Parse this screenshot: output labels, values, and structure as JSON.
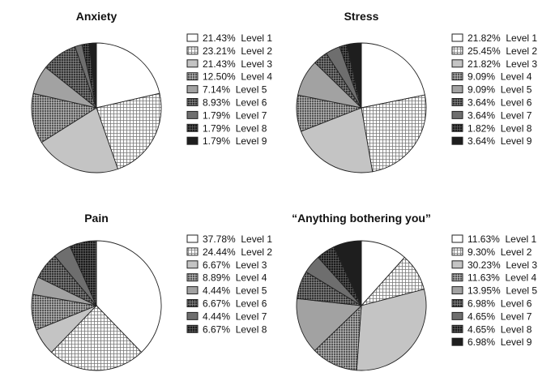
{
  "chart_data": [
    {
      "type": "pie",
      "title": "Anxiety",
      "categories": [
        "Level 1",
        "Level 2",
        "Level 3",
        "Level 4",
        "Level 5",
        "Level 6",
        "Level 7",
        "Level 8",
        "Level 9"
      ],
      "values": [
        21.43,
        23.21,
        21.43,
        12.5,
        7.14,
        8.93,
        1.79,
        1.79,
        1.79
      ],
      "labels": [
        "21.43%",
        "23.21%",
        "21.43%",
        "12.50%",
        "7.14%",
        "8.93%",
        "1.79%",
        "1.79%",
        "1.79%"
      ],
      "legend": "right"
    },
    {
      "type": "pie",
      "title": "Stress",
      "categories": [
        "Level 1",
        "Level 2",
        "Level 3",
        "Level 4",
        "Level 5",
        "Level 6",
        "Level 7",
        "Level 8",
        "Level 9"
      ],
      "values": [
        21.82,
        25.45,
        21.82,
        9.09,
        9.09,
        3.64,
        3.64,
        1.82,
        3.64
      ],
      "labels": [
        "21.82%",
        "25.45%",
        "21.82%",
        "9.09%",
        "9.09%",
        "3.64%",
        "3.64%",
        "1.82%",
        "3.64%"
      ],
      "legend": "right"
    },
    {
      "type": "pie",
      "title": "Pain",
      "categories": [
        "Level 1",
        "Level 2",
        "Level 3",
        "Level 4",
        "Level 5",
        "Level 6",
        "Level 7",
        "Level 8"
      ],
      "values": [
        37.78,
        24.44,
        6.67,
        8.89,
        4.44,
        6.67,
        4.44,
        6.67
      ],
      "labels": [
        "37.78%",
        "24.44%",
        "6.67%",
        "8.89%",
        "4.44%",
        "6.67%",
        "4.44%",
        "6.67%"
      ],
      "legend": "right"
    },
    {
      "type": "pie",
      "title": "“Anything bothering you”",
      "categories": [
        "Level 1",
        "Level 2",
        "Level 3",
        "Level 4",
        "Level 5",
        "Level 6",
        "Level 7",
        "Level 8",
        "Level 9"
      ],
      "values": [
        11.63,
        9.3,
        30.23,
        11.63,
        13.95,
        6.98,
        4.65,
        4.65,
        6.98
      ],
      "labels": [
        "11.63%",
        "9.30%",
        "30.23%",
        "11.63%",
        "13.95%",
        "6.98%",
        "4.65%",
        "4.65%",
        "6.98%"
      ],
      "legend": "right"
    }
  ]
}
